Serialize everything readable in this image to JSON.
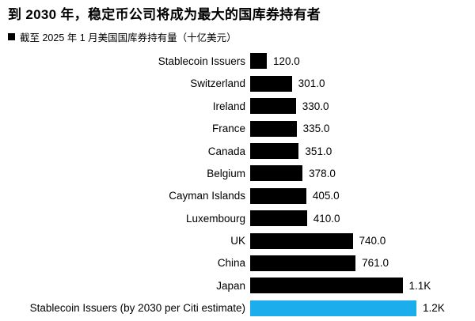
{
  "header": {
    "title": "到 2030 年，稳定币公司将成为最大的国库券持有者",
    "subtitle": "截至 2025 年 1 月美国国库券持有量（十亿美元）"
  },
  "chart_data": {
    "type": "bar",
    "orientation": "horizontal",
    "title": "到 2030 年，稳定币公司将成为最大的国库券持有者",
    "subtitle": "截至 2025 年 1 月美国国库券持有量（十亿美元）",
    "xlim": [
      0,
      1200
    ],
    "grid": false,
    "legend_position": "none",
    "categories": [
      "Stablecoin Issuers",
      "Switzerland",
      "Ireland",
      "France",
      "Canada",
      "Belgium",
      "Cayman Islands",
      "Luxembourg",
      "UK",
      "China",
      "Japan",
      "Stablecoin Issuers (by 2030 per Citi estimate)"
    ],
    "values": [
      120,
      301,
      330,
      335,
      351,
      378,
      405,
      410,
      740,
      761,
      1100,
      1200
    ],
    "value_labels": [
      "120.0",
      "301.0",
      "330.0",
      "335.0",
      "351.0",
      "378.0",
      "405.0",
      "410.0",
      "740.0",
      "761.0",
      "1.1K",
      "1.2K"
    ],
    "colors": {
      "default_bar": "#000000",
      "highlight_bar": "#1CAEEC",
      "highlight_index": 11,
      "text": "#000000",
      "background": "#ffffff"
    }
  }
}
